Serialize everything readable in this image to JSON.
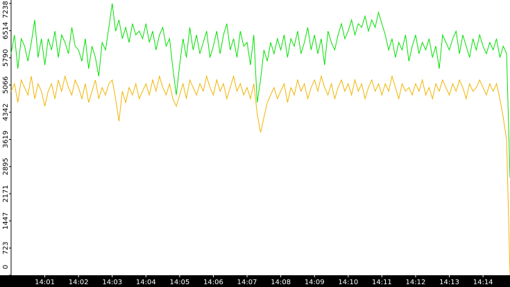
{
  "chart_data": {
    "type": "line",
    "x": [
      0,
      0.1,
      0.2,
      0.3,
      0.4,
      0.5,
      0.6,
      0.7,
      0.8,
      0.9,
      1,
      1.1,
      1.2,
      1.3,
      1.4,
      1.5,
      1.6,
      1.7,
      1.8,
      1.9,
      2,
      2.1,
      2.2,
      2.3,
      2.4,
      2.5,
      2.6,
      2.7,
      2.8,
      2.9,
      3,
      3.1,
      3.2,
      3.3,
      3.4,
      3.5,
      3.6,
      3.7,
      3.8,
      3.9,
      4,
      4.1,
      4.2,
      4.3,
      4.4,
      4.5,
      4.6,
      4.7,
      4.8,
      4.9,
      5,
      5.1,
      5.2,
      5.3,
      5.4,
      5.5,
      5.6,
      5.7,
      5.8,
      5.9,
      6,
      6.1,
      6.2,
      6.3,
      6.4,
      6.5,
      6.6,
      6.7,
      6.8,
      6.9,
      7,
      7.1,
      7.2,
      7.3,
      7.4,
      7.5,
      7.6,
      7.7,
      7.8,
      7.9,
      8,
      8.1,
      8.2,
      8.3,
      8.4,
      8.5,
      8.6,
      8.7,
      8.8,
      8.9,
      9,
      9.1,
      9.2,
      9.3,
      9.4,
      9.5,
      9.6,
      9.7,
      9.8,
      9.9,
      10,
      10.1,
      10.2,
      10.3,
      10.4,
      10.5,
      10.6,
      10.7,
      10.8,
      10.9,
      11,
      11.1,
      11.2,
      11.3,
      11.4,
      11.5,
      11.6,
      11.7,
      11.8,
      11.9,
      12,
      12.1,
      12.2,
      12.3,
      12.4,
      12.5,
      12.6,
      12.7,
      12.8,
      12.9,
      13,
      13.1,
      13.2,
      13.3,
      13.4,
      13.5,
      13.6,
      13.7,
      13.8,
      13.9,
      14,
      14.1,
      14.2,
      14.3,
      14.4,
      14.5,
      14.6,
      14.7,
      14.8
    ],
    "series": [
      {
        "color": "#00e000",
        "values": [
          5900,
          6400,
          5500,
          6300,
          6100,
          5700,
          6200,
          6800,
          5800,
          6300,
          5600,
          6300,
          6000,
          6500,
          5800,
          6400,
          6200,
          5900,
          6600,
          6100,
          6000,
          5700,
          6300,
          5500,
          6100,
          5800,
          5300,
          6200,
          6000,
          6600,
          7238,
          6500,
          6800,
          6300,
          6600,
          6200,
          6700,
          6400,
          6500,
          6300,
          6700,
          6200,
          6500,
          6000,
          6400,
          6600,
          6100,
          6300,
          5500,
          4800,
          5600,
          6300,
          5800,
          6600,
          6000,
          6400,
          5900,
          6200,
          6500,
          5800,
          6100,
          6500,
          5900,
          6400,
          6700,
          6000,
          6300,
          5800,
          6500,
          6100,
          6200,
          5600,
          6400,
          4600,
          5200,
          6000,
          5700,
          6200,
          5900,
          6300,
          6000,
          6400,
          5800,
          6300,
          6100,
          6500,
          5900,
          6200,
          6600,
          6000,
          6400,
          5900,
          6300,
          5600,
          6500,
          6200,
          6000,
          6400,
          6700,
          6300,
          6500,
          6800,
          6400,
          6700,
          6600,
          6900,
          6500,
          6800,
          6600,
          7000,
          6700,
          6400,
          6000,
          6300,
          5800,
          6200,
          6000,
          6400,
          5700,
          6100,
          6400,
          5900,
          6200,
          6000,
          6300,
          5800,
          6100,
          5500,
          6400,
          6200,
          6000,
          6300,
          6500,
          5900,
          6400,
          6100,
          5800,
          6300,
          6000,
          6400,
          6100,
          5900,
          6200,
          6000,
          6300,
          5800,
          6100,
          5900,
          2600
        ]
      },
      {
        "color": "#f0b400",
        "values": [
          4900,
          5100,
          4600,
          5200,
          5000,
          4800,
          5300,
          4700,
          5100,
          4900,
          4500,
          4900,
          5100,
          4700,
          5200,
          4900,
          5300,
          5000,
          4800,
          5200,
          5000,
          4700,
          5100,
          4600,
          4900,
          5200,
          4700,
          5000,
          4800,
          5100,
          5200,
          4700,
          4100,
          4900,
          4600,
          5000,
          4800,
          5100,
          4700,
          4900,
          5100,
          4800,
          5200,
          4900,
          5300,
          5000,
          4800,
          5100,
          4700,
          4500,
          4800,
          5100,
          4700,
          5200,
          5000,
          4800,
          5100,
          4900,
          5300,
          5000,
          4800,
          5200,
          4900,
          5100,
          4700,
          5000,
          5300,
          4900,
          5100,
          4800,
          5000,
          4700,
          5100,
          4300,
          3800,
          4200,
          4600,
          4800,
          5000,
          4700,
          4900,
          5100,
          4600,
          5000,
          4800,
          5200,
          4900,
          5100,
          4700,
          5000,
          5200,
          4900,
          5300,
          5000,
          4800,
          5100,
          4700,
          5000,
          5200,
          4900,
          5100,
          4800,
          5200,
          4900,
          5100,
          4700,
          5000,
          5200,
          4900,
          5100,
          4800,
          5100,
          4900,
          5300,
          5000,
          4700,
          5100,
          4900,
          5000,
          4800,
          5100,
          4900,
          5200,
          4800,
          5000,
          4700,
          5100,
          4900,
          5200,
          5000,
          4800,
          5100,
          4900,
          5200,
          5000,
          4700,
          5100,
          4900,
          5000,
          5200,
          5000,
          4800,
          5100,
          4900,
          5100,
          4700,
          4200,
          3600,
          0
        ]
      }
    ],
    "xlim": [
      0,
      14.8
    ],
    "xticks": [
      {
        "value": 1,
        "label": "14:01"
      },
      {
        "value": 2,
        "label": "14:02"
      },
      {
        "value": 3,
        "label": "14:03"
      },
      {
        "value": 4,
        "label": "14:04"
      },
      {
        "value": 5,
        "label": "14:05"
      },
      {
        "value": 6,
        "label": "14:06"
      },
      {
        "value": 7,
        "label": "14:07"
      },
      {
        "value": 8,
        "label": "14:08"
      },
      {
        "value": 9,
        "label": "14:09"
      },
      {
        "value": 10,
        "label": "14:10"
      },
      {
        "value": 11,
        "label": "14:11"
      },
      {
        "value": 12,
        "label": "14:12"
      },
      {
        "value": 13,
        "label": "14:13"
      },
      {
        "value": 14,
        "label": "14:14"
      }
    ],
    "ylim": [
      0,
      7238
    ],
    "yticks": [
      0,
      723,
      1447,
      2171,
      2895,
      3619,
      4342,
      5066,
      5790,
      6514,
      7238
    ],
    "grid": false
  }
}
